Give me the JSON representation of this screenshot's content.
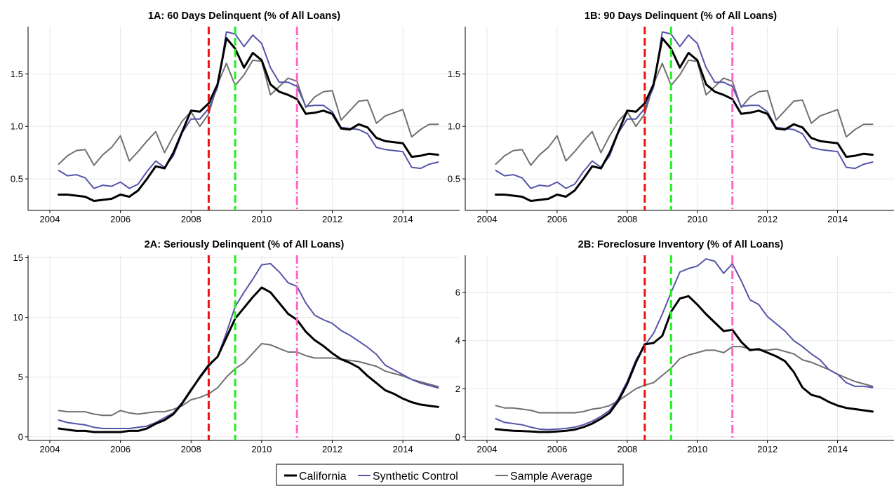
{
  "chart_data": [
    {
      "id": "1A",
      "type": "line",
      "title": "1A: 60 Days Delinquent (% of All Loans)",
      "xlim": [
        2004,
        2015
      ],
      "ylim": [
        0.2,
        1.95
      ],
      "xticks": [
        2004,
        2006,
        2008,
        2010,
        2012,
        2014
      ],
      "yticks": [
        0.5,
        1.0,
        1.5
      ],
      "ytick_labels": [
        "0.5",
        "1.0",
        "1.5"
      ],
      "vlines": [
        {
          "x": 2008.5,
          "color": "#ee1111",
          "style": "dash"
        },
        {
          "x": 2009.25,
          "color": "#22ee22",
          "style": "dash"
        },
        {
          "x": 2011.0,
          "color": "#ff66cc",
          "style": "dashdot"
        }
      ],
      "x": [
        2004.25,
        2004.5,
        2004.75,
        2005.0,
        2005.25,
        2005.5,
        2005.75,
        2006.0,
        2006.25,
        2006.5,
        2006.75,
        2007.0,
        2007.25,
        2007.5,
        2007.75,
        2008.0,
        2008.25,
        2008.5,
        2008.75,
        2009.0,
        2009.25,
        2009.5,
        2009.75,
        2010.0,
        2010.25,
        2010.5,
        2010.75,
        2011.0,
        2011.25,
        2011.5,
        2011.75,
        2012.0,
        2012.25,
        2012.5,
        2012.75,
        2013.0,
        2013.25,
        2013.5,
        2013.75,
        2014.0,
        2014.25,
        2014.5,
        2014.75,
        2015.0
      ],
      "series": [
        {
          "name": "California",
          "color": "#000000",
          "width": 3,
          "values": [
            0.35,
            0.35,
            0.34,
            0.33,
            0.29,
            0.3,
            0.31,
            0.35,
            0.33,
            0.39,
            0.5,
            0.62,
            0.6,
            0.75,
            0.95,
            1.15,
            1.14,
            1.22,
            1.4,
            1.84,
            1.74,
            1.56,
            1.7,
            1.63,
            1.4,
            1.33,
            1.3,
            1.26,
            1.12,
            1.13,
            1.15,
            1.12,
            0.98,
            0.97,
            1.02,
            0.99,
            0.89,
            0.86,
            0.85,
            0.84,
            0.71,
            0.72,
            0.74,
            0.73
          ]
        },
        {
          "name": "Synthetic Control",
          "color": "#5555aa",
          "width": 2,
          "values": [
            0.58,
            0.53,
            0.54,
            0.51,
            0.41,
            0.44,
            0.43,
            0.47,
            0.41,
            0.45,
            0.57,
            0.67,
            0.61,
            0.72,
            0.94,
            1.07,
            1.07,
            1.17,
            1.37,
            1.9,
            1.88,
            1.76,
            1.87,
            1.79,
            1.56,
            1.42,
            1.42,
            1.38,
            1.19,
            1.2,
            1.2,
            1.14,
            0.99,
            0.98,
            0.97,
            0.93,
            0.8,
            0.78,
            0.77,
            0.76,
            0.61,
            0.6,
            0.64,
            0.66
          ]
        },
        {
          "name": "Sample Average",
          "color": "#707070",
          "width": 2,
          "values": [
            0.64,
            0.72,
            0.77,
            0.78,
            0.63,
            0.73,
            0.8,
            0.91,
            0.67,
            0.76,
            0.86,
            0.95,
            0.75,
            0.91,
            1.05,
            1.14,
            1.0,
            1.12,
            1.4,
            1.6,
            1.39,
            1.49,
            1.63,
            1.62,
            1.3,
            1.38,
            1.46,
            1.43,
            1.18,
            1.28,
            1.33,
            1.34,
            1.06,
            1.15,
            1.24,
            1.25,
            1.03,
            1.1,
            1.13,
            1.16,
            0.9,
            0.97,
            1.02,
            1.02
          ]
        }
      ]
    },
    {
      "id": "1B",
      "type": "line",
      "title": "1B: 90 Days Delinquent (% of All Loans)",
      "xlim": [
        2004,
        2015
      ],
      "ylim": [
        0.2,
        1.95
      ],
      "xticks": [
        2004,
        2006,
        2008,
        2010,
        2012,
        2014
      ],
      "yticks": [
        0.5,
        1.0,
        1.5
      ],
      "ytick_labels": [
        "0.5",
        "1.0",
        "1.5"
      ],
      "vlines": [
        {
          "x": 2008.5,
          "color": "#ee1111",
          "style": "dash"
        },
        {
          "x": 2009.25,
          "color": "#22ee22",
          "style": "dash"
        },
        {
          "x": 2011.0,
          "color": "#ff66cc",
          "style": "dashdot"
        }
      ],
      "x": [
        2004.25,
        2004.5,
        2004.75,
        2005.0,
        2005.25,
        2005.5,
        2005.75,
        2006.0,
        2006.25,
        2006.5,
        2006.75,
        2007.0,
        2007.25,
        2007.5,
        2007.75,
        2008.0,
        2008.25,
        2008.5,
        2008.75,
        2009.0,
        2009.25,
        2009.5,
        2009.75,
        2010.0,
        2010.25,
        2010.5,
        2010.75,
        2011.0,
        2011.25,
        2011.5,
        2011.75,
        2012.0,
        2012.25,
        2012.5,
        2012.75,
        2013.0,
        2013.25,
        2013.5,
        2013.75,
        2014.0,
        2014.25,
        2014.5,
        2014.75,
        2015.0
      ],
      "series": [
        {
          "name": "California",
          "color": "#000000",
          "width": 3,
          "values": [
            0.35,
            0.35,
            0.34,
            0.33,
            0.29,
            0.3,
            0.31,
            0.35,
            0.33,
            0.39,
            0.5,
            0.62,
            0.6,
            0.75,
            0.95,
            1.15,
            1.14,
            1.22,
            1.4,
            1.84,
            1.74,
            1.56,
            1.7,
            1.63,
            1.4,
            1.33,
            1.3,
            1.26,
            1.12,
            1.13,
            1.15,
            1.12,
            0.98,
            0.97,
            1.02,
            0.99,
            0.89,
            0.86,
            0.85,
            0.84,
            0.71,
            0.72,
            0.74,
            0.73
          ]
        },
        {
          "name": "Synthetic Control",
          "color": "#5555aa",
          "width": 2,
          "values": [
            0.58,
            0.53,
            0.54,
            0.51,
            0.41,
            0.44,
            0.43,
            0.47,
            0.41,
            0.45,
            0.57,
            0.67,
            0.61,
            0.72,
            0.94,
            1.07,
            1.07,
            1.17,
            1.37,
            1.9,
            1.88,
            1.76,
            1.87,
            1.79,
            1.56,
            1.42,
            1.42,
            1.38,
            1.19,
            1.2,
            1.2,
            1.14,
            0.99,
            0.98,
            0.97,
            0.93,
            0.8,
            0.78,
            0.77,
            0.76,
            0.61,
            0.6,
            0.64,
            0.66
          ]
        },
        {
          "name": "Sample Average",
          "color": "#707070",
          "width": 2,
          "values": [
            0.64,
            0.72,
            0.77,
            0.78,
            0.63,
            0.73,
            0.8,
            0.91,
            0.67,
            0.76,
            0.86,
            0.95,
            0.75,
            0.91,
            1.05,
            1.14,
            1.0,
            1.12,
            1.4,
            1.6,
            1.39,
            1.49,
            1.63,
            1.62,
            1.3,
            1.38,
            1.46,
            1.43,
            1.18,
            1.28,
            1.33,
            1.34,
            1.06,
            1.15,
            1.24,
            1.25,
            1.03,
            1.1,
            1.13,
            1.16,
            0.9,
            0.97,
            1.02,
            1.02
          ]
        }
      ]
    },
    {
      "id": "2A",
      "type": "line",
      "title": "2A: Seriously Delinquent (% of All Loans)",
      "xlim": [
        2004,
        2015
      ],
      "ylim": [
        -0.3,
        15.2
      ],
      "xticks": [
        2004,
        2006,
        2008,
        2010,
        2012,
        2014
      ],
      "yticks": [
        0,
        5,
        10,
        15
      ],
      "ytick_labels": [
        "0",
        "5",
        "10",
        "15"
      ],
      "vlines": [
        {
          "x": 2008.5,
          "color": "#ee1111",
          "style": "dash"
        },
        {
          "x": 2009.25,
          "color": "#22ee22",
          "style": "dash"
        },
        {
          "x": 2011.0,
          "color": "#ff66cc",
          "style": "dashdot"
        }
      ],
      "x": [
        2004.25,
        2004.5,
        2004.75,
        2005.0,
        2005.25,
        2005.5,
        2005.75,
        2006.0,
        2006.25,
        2006.5,
        2006.75,
        2007.0,
        2007.25,
        2007.5,
        2007.75,
        2008.0,
        2008.25,
        2008.5,
        2008.75,
        2009.0,
        2009.25,
        2009.5,
        2009.75,
        2010.0,
        2010.25,
        2010.5,
        2010.75,
        2011.0,
        2011.25,
        2011.5,
        2011.75,
        2012.0,
        2012.25,
        2012.5,
        2012.75,
        2013.0,
        2013.25,
        2013.5,
        2013.75,
        2014.0,
        2014.25,
        2014.5,
        2014.75,
        2015.0
      ],
      "series": [
        {
          "name": "California",
          "color": "#000000",
          "width": 3,
          "values": [
            0.7,
            0.6,
            0.5,
            0.5,
            0.4,
            0.4,
            0.4,
            0.4,
            0.5,
            0.5,
            0.7,
            1.1,
            1.4,
            1.9,
            2.8,
            3.9,
            5.0,
            6.0,
            6.7,
            8.3,
            9.9,
            10.8,
            11.7,
            12.5,
            12.1,
            11.2,
            10.3,
            9.8,
            8.8,
            8.1,
            7.6,
            7.0,
            6.5,
            6.2,
            5.8,
            5.1,
            4.5,
            3.9,
            3.6,
            3.2,
            2.9,
            2.7,
            2.6,
            2.5
          ]
        },
        {
          "name": "Synthetic Control",
          "color": "#5555aa",
          "width": 2,
          "values": [
            1.4,
            1.2,
            1.1,
            1.0,
            0.8,
            0.7,
            0.7,
            0.7,
            0.7,
            0.8,
            0.9,
            1.2,
            1.6,
            2.0,
            2.9,
            4.0,
            4.9,
            5.9,
            6.7,
            8.7,
            10.9,
            12.1,
            13.2,
            14.4,
            14.5,
            13.8,
            12.9,
            12.6,
            11.2,
            10.2,
            9.8,
            9.5,
            8.9,
            8.5,
            8.0,
            7.5,
            6.9,
            6.0,
            5.6,
            5.2,
            4.8,
            4.5,
            4.3,
            4.1
          ]
        },
        {
          "name": "Sample Average",
          "color": "#707070",
          "width": 2,
          "values": [
            2.2,
            2.1,
            2.1,
            2.1,
            1.9,
            1.8,
            1.8,
            2.2,
            2.0,
            1.9,
            2.0,
            2.1,
            2.1,
            2.3,
            2.6,
            3.1,
            3.3,
            3.6,
            4.1,
            5.0,
            5.7,
            6.2,
            7.0,
            7.8,
            7.7,
            7.4,
            7.1,
            7.1,
            6.8,
            6.6,
            6.6,
            6.6,
            6.5,
            6.4,
            6.3,
            6.1,
            5.9,
            5.5,
            5.3,
            5.1,
            4.8,
            4.6,
            4.4,
            4.2
          ]
        }
      ]
    },
    {
      "id": "2B",
      "type": "line",
      "title": "2B: Foreclosure Inventory (% of All Loans)",
      "xlim": [
        2004,
        2015
      ],
      "ylim": [
        -0.15,
        7.55
      ],
      "xticks": [
        2004,
        2006,
        2008,
        2010,
        2012,
        2014
      ],
      "yticks": [
        0,
        2,
        4,
        6
      ],
      "ytick_labels": [
        "0",
        "2",
        "4",
        "6"
      ],
      "vlines": [
        {
          "x": 2008.5,
          "color": "#ee1111",
          "style": "dash"
        },
        {
          "x": 2009.25,
          "color": "#22ee22",
          "style": "dash"
        },
        {
          "x": 2011.0,
          "color": "#ff66cc",
          "style": "dashdot"
        }
      ],
      "x": [
        2004.25,
        2004.5,
        2004.75,
        2005.0,
        2005.25,
        2005.5,
        2005.75,
        2006.0,
        2006.25,
        2006.5,
        2006.75,
        2007.0,
        2007.25,
        2007.5,
        2007.75,
        2008.0,
        2008.25,
        2008.5,
        2008.75,
        2009.0,
        2009.25,
        2009.5,
        2009.75,
        2010.0,
        2010.25,
        2010.5,
        2010.75,
        2011.0,
        2011.25,
        2011.5,
        2011.75,
        2012.0,
        2012.25,
        2012.5,
        2012.75,
        2013.0,
        2013.25,
        2013.5,
        2013.75,
        2014.0,
        2014.25,
        2014.5,
        2014.75,
        2015.0
      ],
      "series": [
        {
          "name": "California",
          "color": "#000000",
          "width": 3,
          "values": [
            0.32,
            0.28,
            0.25,
            0.24,
            0.22,
            0.2,
            0.2,
            0.22,
            0.25,
            0.3,
            0.4,
            0.55,
            0.75,
            1.0,
            1.5,
            2.2,
            3.1,
            3.85,
            3.9,
            4.2,
            5.2,
            5.75,
            5.85,
            5.5,
            5.1,
            4.75,
            4.4,
            4.45,
            3.95,
            3.6,
            3.65,
            3.5,
            3.35,
            3.15,
            2.7,
            2.05,
            1.75,
            1.65,
            1.45,
            1.3,
            1.2,
            1.15,
            1.1,
            1.05
          ]
        },
        {
          "name": "Synthetic Control",
          "color": "#5555aa",
          "width": 2,
          "values": [
            0.75,
            0.6,
            0.55,
            0.5,
            0.4,
            0.32,
            0.3,
            0.32,
            0.35,
            0.4,
            0.5,
            0.65,
            0.85,
            1.1,
            1.6,
            2.3,
            3.2,
            3.8,
            4.3,
            5.1,
            6.0,
            6.85,
            7.0,
            7.1,
            7.4,
            7.3,
            6.8,
            7.2,
            6.5,
            5.7,
            5.5,
            5.0,
            4.7,
            4.4,
            4.0,
            3.75,
            3.45,
            3.2,
            2.8,
            2.6,
            2.25,
            2.1,
            2.1,
            2.05
          ]
        },
        {
          "name": "Sample Average",
          "color": "#707070",
          "width": 2,
          "values": [
            1.3,
            1.2,
            1.2,
            1.15,
            1.1,
            1.0,
            1.0,
            1.0,
            1.0,
            1.0,
            1.05,
            1.15,
            1.2,
            1.3,
            1.5,
            1.75,
            2.0,
            2.15,
            2.25,
            2.55,
            2.85,
            3.25,
            3.4,
            3.5,
            3.6,
            3.6,
            3.5,
            3.75,
            3.75,
            3.65,
            3.6,
            3.6,
            3.65,
            3.55,
            3.45,
            3.2,
            3.1,
            2.95,
            2.8,
            2.6,
            2.45,
            2.3,
            2.2,
            2.1
          ]
        }
      ]
    }
  ],
  "legend": {
    "position": "bottom-center",
    "items": [
      {
        "label": "California",
        "color": "#000000"
      },
      {
        "label": "Synthetic Control",
        "color": "#5555aa"
      },
      {
        "label": "Sample Average",
        "color": "#707070"
      }
    ]
  }
}
